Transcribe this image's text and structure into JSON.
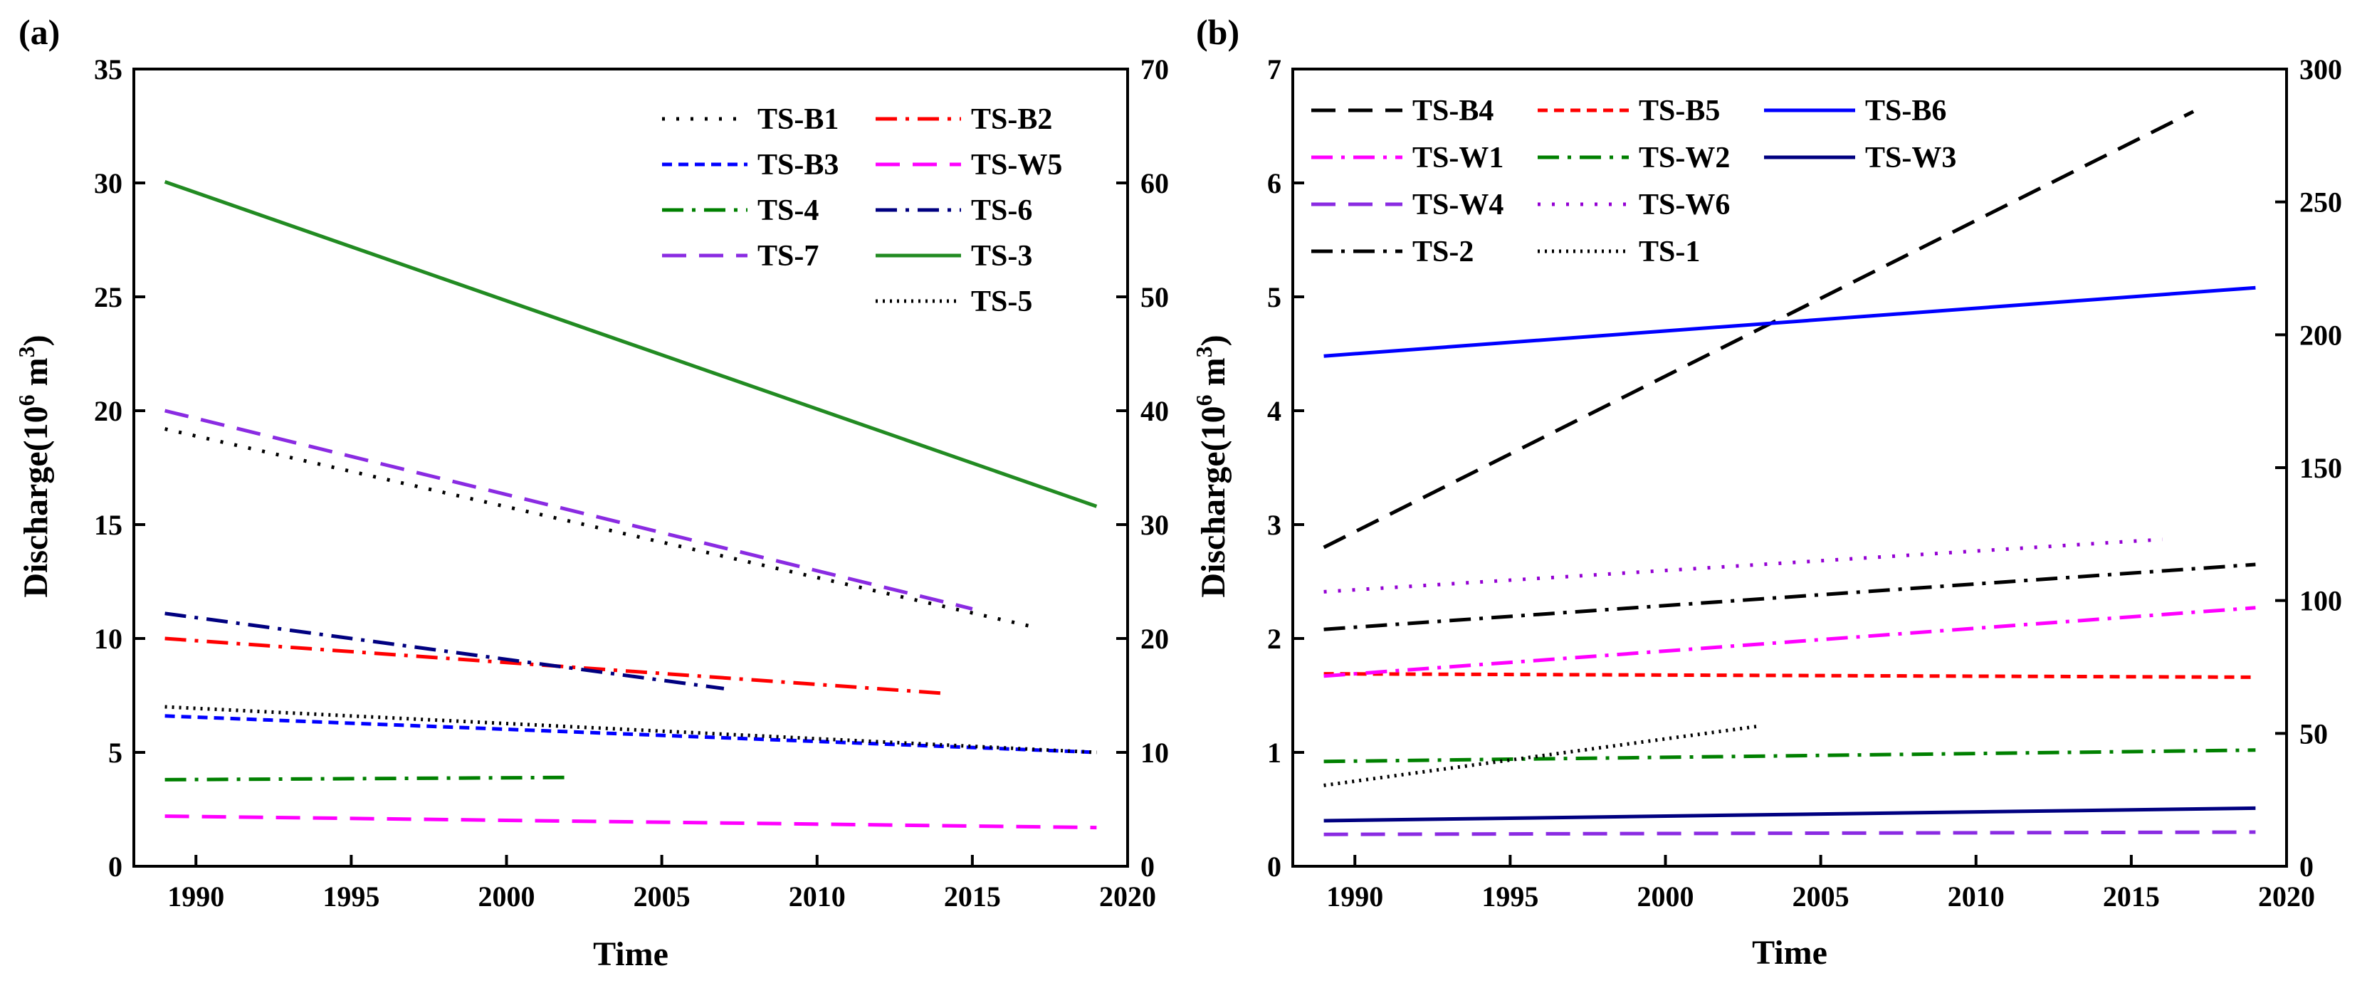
{
  "figure": {
    "panel_labels": [
      "(a)",
      "(b)"
    ]
  },
  "chart_data": [
    {
      "type": "line",
      "panel": "(a)",
      "xlabel": "Time",
      "ylabel": "Discharge(10⁶ m³)",
      "ylabel_base": "Discharge(10",
      "ylabel_exp1": "6",
      "ylabel_mid": " m",
      "ylabel_exp2": "3",
      "ylabel_end": ")",
      "xlim": [
        1988,
        2020
      ],
      "ylim": [
        0,
        35
      ],
      "y2lim": [
        0,
        70
      ],
      "xticks": [
        1990,
        1995,
        2000,
        2005,
        2010,
        2015,
        2020
      ],
      "yticks": [
        0,
        5,
        10,
        15,
        20,
        25,
        30,
        35
      ],
      "y2ticks": [
        0,
        10,
        20,
        30,
        40,
        50,
        60,
        70
      ],
      "series": [
        {
          "name": "TS-B1",
          "color": "#000000",
          "dash": "dot",
          "axis": "left",
          "x": [
            1989,
            2017
          ],
          "y": [
            19.2,
            10.5
          ]
        },
        {
          "name": "TS-B2",
          "color": "#ff0000",
          "dash": "dashdot",
          "axis": "left",
          "x": [
            1989,
            2014
          ],
          "y": [
            10.0,
            7.6
          ]
        },
        {
          "name": "TS-B3",
          "color": "#0000ff",
          "dash": "short",
          "axis": "left",
          "x": [
            1989,
            2019
          ],
          "y": [
            6.6,
            5.0
          ]
        },
        {
          "name": "TS-W5",
          "color": "#ff00ff",
          "dash": "dash",
          "axis": "left",
          "x": [
            1989,
            2019
          ],
          "y": [
            2.2,
            1.7
          ]
        },
        {
          "name": "TS-4",
          "color": "#008000",
          "dash": "dashdot",
          "axis": "left",
          "x": [
            1989,
            2002
          ],
          "y": [
            3.8,
            3.9
          ]
        },
        {
          "name": "TS-6",
          "color": "#000080",
          "dash": "dashdot",
          "axis": "left",
          "x": [
            1989,
            2007
          ],
          "y": [
            11.1,
            7.8
          ]
        },
        {
          "name": "TS-7",
          "color": "#8a2be2",
          "dash": "dash",
          "axis": "left",
          "x": [
            1989,
            2015
          ],
          "y": [
            20.0,
            11.3
          ]
        },
        {
          "name": "TS-3",
          "color": "#228b22",
          "dash": "solid",
          "axis": "right",
          "x": [
            1989,
            2019
          ],
          "y": [
            60.1,
            31.6
          ]
        },
        {
          "name": "TS-5",
          "color": "#000000",
          "dash": "densedot",
          "axis": "right",
          "x": [
            1989,
            2019
          ],
          "y": [
            14.0,
            10.0
          ]
        }
      ],
      "legend": [
        {
          "name": "TS-B1",
          "col": 0,
          "row": 0
        },
        {
          "name": "TS-B2",
          "col": 1,
          "row": 0
        },
        {
          "name": "TS-B3",
          "col": 0,
          "row": 1
        },
        {
          "name": "TS-W5",
          "col": 1,
          "row": 1
        },
        {
          "name": "TS-4",
          "col": 0,
          "row": 2
        },
        {
          "name": "TS-6",
          "col": 1,
          "row": 2
        },
        {
          "name": "TS-7",
          "col": 0,
          "row": 3
        },
        {
          "name": "TS-3",
          "col": 1,
          "row": 3
        },
        {
          "name": "TS-5",
          "col": 1,
          "row": 4
        }
      ]
    },
    {
      "type": "line",
      "panel": "(b)",
      "xlabel": "Time",
      "ylabel": "Discharge(10⁶ m³)",
      "ylabel_base": "Discharge(10",
      "ylabel_exp1": "6",
      "ylabel_mid": " m",
      "ylabel_exp2": "3",
      "ylabel_end": ")",
      "xlim": [
        1988,
        2020
      ],
      "ylim": [
        0,
        7
      ],
      "y2lim": [
        0,
        300
      ],
      "xticks": [
        1990,
        1995,
        2000,
        2005,
        2010,
        2015,
        2020
      ],
      "yticks": [
        0,
        1,
        2,
        3,
        4,
        5,
        6,
        7
      ],
      "y2ticks": [
        0,
        50,
        100,
        150,
        200,
        250,
        300
      ],
      "series": [
        {
          "name": "TS-B4",
          "color": "#000000",
          "dash": "dash",
          "axis": "right",
          "x": [
            1989,
            2017
          ],
          "y": [
            120,
            284
          ]
        },
        {
          "name": "TS-B5",
          "color": "#ff0000",
          "dash": "short",
          "axis": "left",
          "x": [
            1989,
            2019
          ],
          "y": [
            1.69,
            1.66
          ]
        },
        {
          "name": "TS-B6",
          "color": "#0000ff",
          "dash": "solid",
          "axis": "left",
          "x": [
            1989,
            2019
          ],
          "y": [
            4.48,
            5.08
          ]
        },
        {
          "name": "TS-W1",
          "color": "#ff00ff",
          "dash": "dashdot",
          "axis": "left",
          "x": [
            1989,
            2019
          ],
          "y": [
            1.67,
            2.27
          ]
        },
        {
          "name": "TS-W2",
          "color": "#008000",
          "dash": "dashdot",
          "axis": "left",
          "x": [
            1989,
            2019
          ],
          "y": [
            0.92,
            1.02
          ]
        },
        {
          "name": "TS-W3",
          "color": "#000080",
          "dash": "solid",
          "axis": "left",
          "x": [
            1989,
            2019
          ],
          "y": [
            0.4,
            0.51
          ]
        },
        {
          "name": "TS-W4",
          "color": "#8a2be2",
          "dash": "dash",
          "axis": "left",
          "x": [
            1989,
            2019
          ],
          "y": [
            0.28,
            0.3
          ]
        },
        {
          "name": "TS-W6",
          "color": "#9400d3",
          "dash": "dot",
          "axis": "left",
          "x": [
            1989,
            2016
          ],
          "y": [
            2.41,
            2.87
          ]
        },
        {
          "name": "TS-2",
          "color": "#000000",
          "dash": "dashdot",
          "axis": "left",
          "x": [
            1989,
            2019
          ],
          "y": [
            2.08,
            2.65
          ]
        },
        {
          "name": "TS-1",
          "color": "#000000",
          "dash": "densedot",
          "axis": "left",
          "x": [
            1989,
            2003
          ],
          "y": [
            0.71,
            1.23
          ]
        }
      ],
      "legend": [
        {
          "name": "TS-B4",
          "col": 0,
          "row": 0
        },
        {
          "name": "TS-B5",
          "col": 1,
          "row": 0
        },
        {
          "name": "TS-B6",
          "col": 2,
          "row": 0
        },
        {
          "name": "TS-W1",
          "col": 0,
          "row": 1
        },
        {
          "name": "TS-W2",
          "col": 1,
          "row": 1
        },
        {
          "name": "TS-W3",
          "col": 2,
          "row": 1
        },
        {
          "name": "TS-W4",
          "col": 0,
          "row": 2
        },
        {
          "name": "TS-W6",
          "col": 1,
          "row": 2
        },
        {
          "name": "TS-2",
          "col": 0,
          "row": 3
        },
        {
          "name": "TS-1",
          "col": 1,
          "row": 3
        }
      ]
    }
  ]
}
